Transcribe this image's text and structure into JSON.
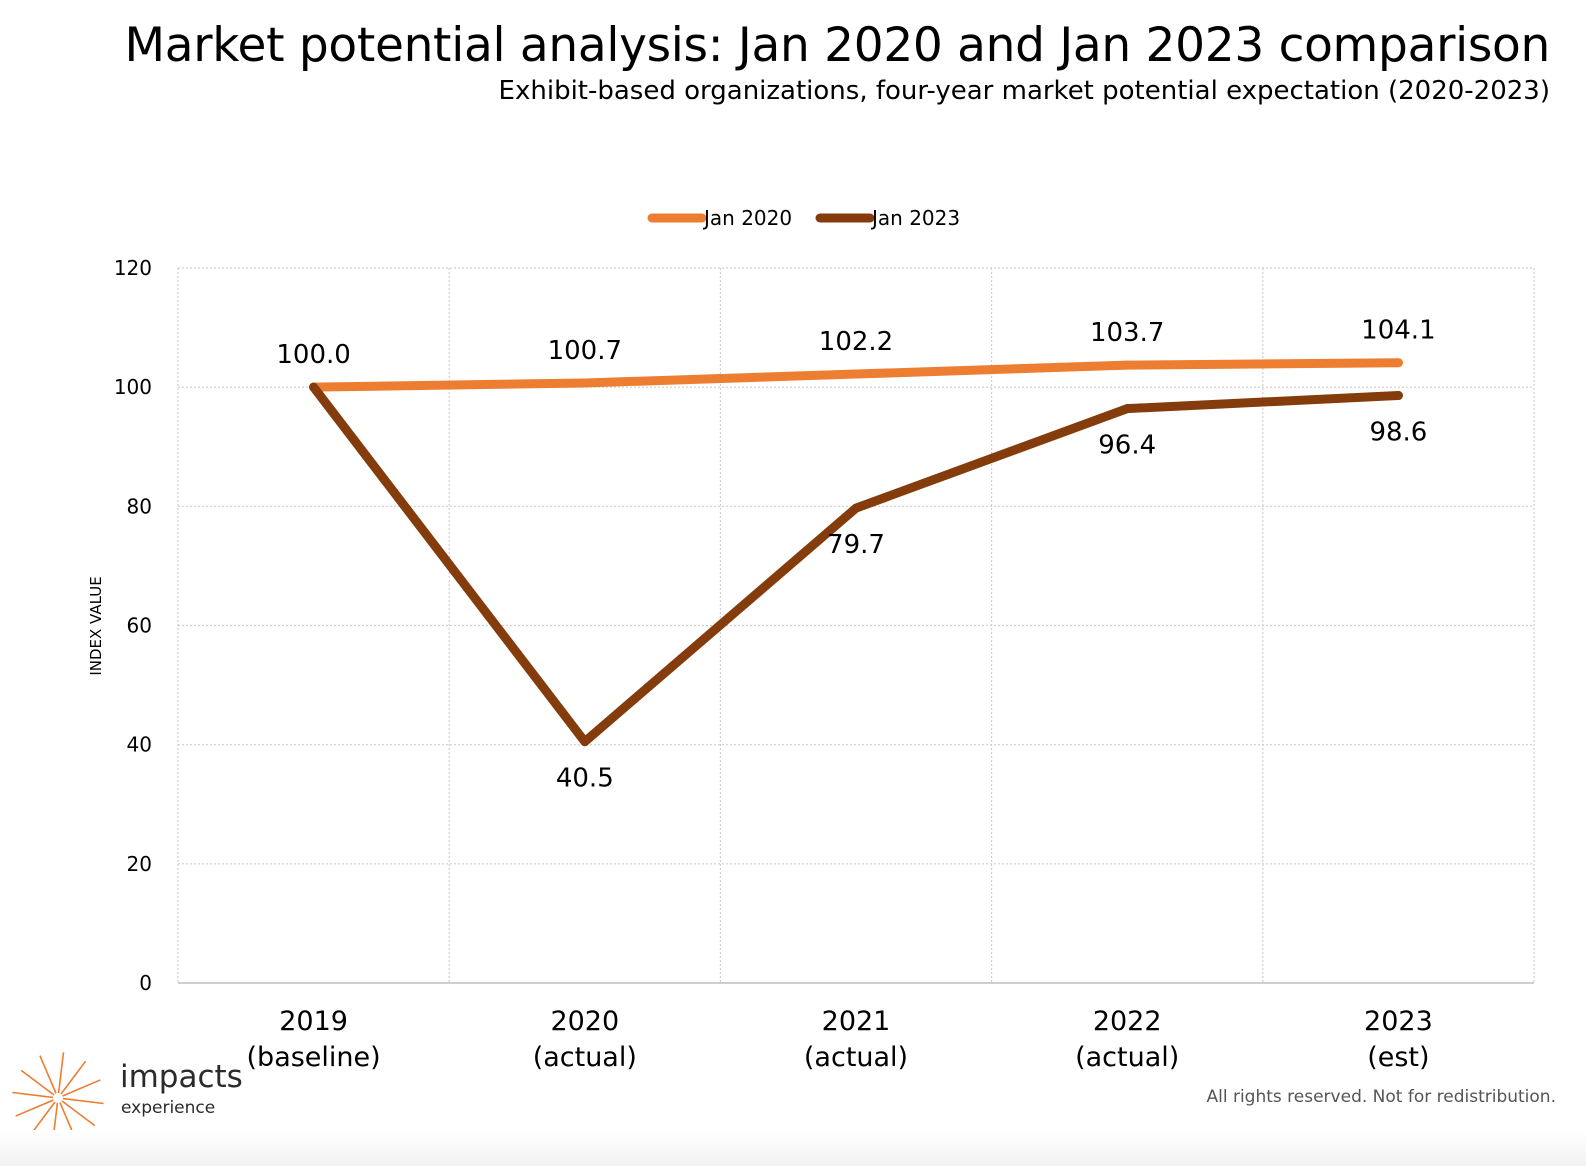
{
  "header": {
    "title": "Market potential analysis: Jan 2020 and Jan 2023 comparison",
    "subtitle": "Exhibit-based organizations, four-year market potential expectation (2020-2023)"
  },
  "footer": {
    "note": "All rights reserved. Not for redistribution.",
    "logo_word": "impacts",
    "logo_sub": "experience"
  },
  "colors": {
    "jan2020": "#ED7D31",
    "jan2023": "#843C0C",
    "logo": "#ED7D31",
    "grid": "#cfcfcf"
  },
  "chart_data": {
    "type": "line",
    "title": "",
    "xlabel": "",
    "ylabel": "INDEX VALUE",
    "categories": [
      [
        "2019",
        "(baseline)"
      ],
      [
        "2020",
        "(actual)"
      ],
      [
        "2021",
        "(actual)"
      ],
      [
        "2022",
        "(actual)"
      ],
      [
        "2023",
        "(est)"
      ]
    ],
    "series": [
      {
        "name": "Jan 2020",
        "color": "#ED7D31",
        "values": [
          100.0,
          100.7,
          102.2,
          103.7,
          104.1
        ],
        "labels": [
          "100.0",
          "100.7",
          "102.2",
          "103.7",
          "104.1"
        ],
        "label_position": "above"
      },
      {
        "name": "Jan 2023",
        "color": "#843C0C",
        "values": [
          100.0,
          40.5,
          79.7,
          96.4,
          98.6
        ],
        "labels": [
          "",
          "40.5",
          "79.7",
          "96.4",
          "98.6"
        ],
        "label_position": "below"
      }
    ],
    "ylim": [
      0,
      120
    ],
    "yticks": [
      0,
      20,
      40,
      60,
      80,
      100,
      120
    ],
    "grid": true,
    "legend": "top-center"
  }
}
